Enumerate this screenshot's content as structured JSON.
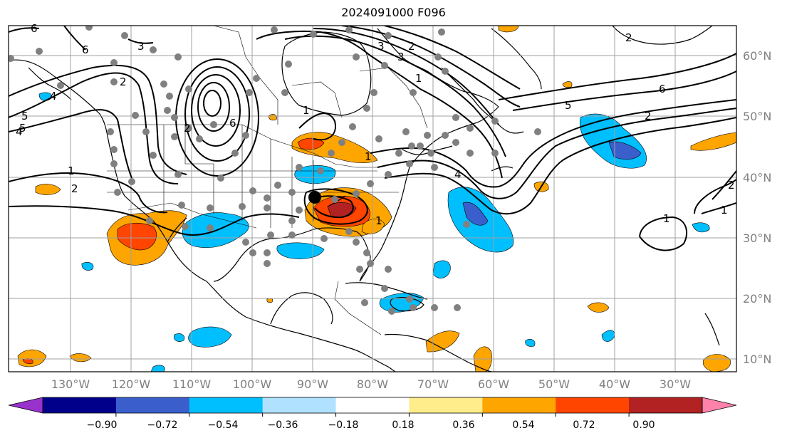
{
  "title": "2024091000 F096",
  "longitude_labels": [
    "130°W",
    "120°W",
    "110°W",
    "100°W",
    "90°W",
    "80°W",
    "70°W",
    "60°W",
    "50°W",
    "40°W",
    "30°W"
  ],
  "latitude_labels": [
    "60°N",
    "50°N",
    "40°N",
    "30°N",
    "20°N",
    "10°N"
  ],
  "colorbar": {
    "colors": [
      "#9932cc",
      "#00008b",
      "#3a5fcd",
      "#00bfff",
      "#b0e2ff",
      "#ffffff",
      "#ffec8b",
      "#ffa500",
      "#ff4500",
      "#b22222",
      "#ff82ab"
    ],
    "tick_labels": [
      "−0.90",
      "−0.72",
      "−0.54",
      "−0.36",
      "−0.18",
      "0.18",
      "0.36",
      "0.54",
      "0.72",
      "0.90"
    ]
  },
  "contour_labels": [
    "5",
    "6",
    "3",
    "2",
    "2",
    "4",
    "5",
    "4",
    "1",
    "2",
    "6",
    "6",
    "1",
    "3",
    "2",
    "3",
    "1",
    "6",
    "5",
    "2",
    "4",
    "1",
    "1",
    "2",
    "1",
    "1",
    "2"
  ],
  "colors": {
    "contour": "#000000",
    "grid": "#a0a0a0",
    "observation_dots": "#808080",
    "marker": "#000000"
  }
}
